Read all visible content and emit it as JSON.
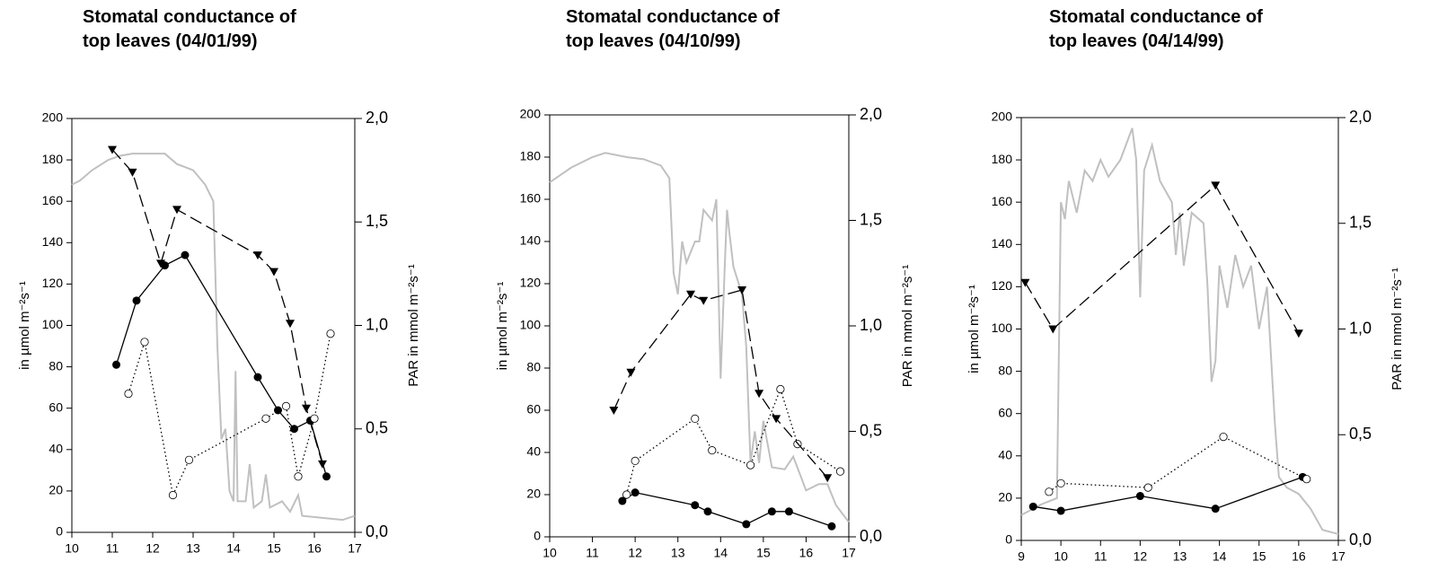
{
  "chart_data": [
    {
      "type": "line",
      "title": [
        "Stomatal conductance of",
        "top leaves (04/01/99)"
      ],
      "ylabel": "in µmol m⁻²s⁻¹",
      "y2label": "PAR in mmol m⁻²s⁻¹",
      "xlim": [
        10,
        17
      ],
      "xticks": [
        10,
        11,
        12,
        13,
        14,
        15,
        16,
        17
      ],
      "ylim": [
        0,
        200
      ],
      "yticks": [
        0,
        20,
        40,
        60,
        80,
        100,
        120,
        140,
        160,
        180,
        200
      ],
      "y2lim": [
        0,
        2
      ],
      "y2ticks": [
        {
          "value": 0,
          "label": "0,0"
        },
        {
          "value": 0.5,
          "label": "0,5"
        },
        {
          "value": 1,
          "label": "1,0"
        },
        {
          "value": 1.5,
          "label": "1,5"
        },
        {
          "value": 2,
          "label": "2,0"
        }
      ],
      "series": [
        {
          "color": "#c0c0c0",
          "marker": "none",
          "dash": "solid",
          "axis": "y2",
          "x": [
            10,
            10.2,
            10.5,
            10.9,
            11.2,
            11.5,
            12,
            12.3,
            12.6,
            13,
            13.3,
            13.5,
            13.6,
            13.7,
            13.8,
            13.9,
            14.0,
            14.05,
            14.1,
            14.3,
            14.4,
            14.5,
            14.7,
            14.8,
            14.9,
            15.2,
            15.4,
            15.6,
            15.7,
            16.2,
            16.7,
            17
          ],
          "values": [
            1.68,
            1.7,
            1.75,
            1.8,
            1.82,
            1.83,
            1.83,
            1.83,
            1.78,
            1.75,
            1.68,
            1.6,
            0.9,
            0.45,
            0.5,
            0.2,
            0.15,
            0.78,
            0.15,
            0.15,
            0.33,
            0.12,
            0.15,
            0.28,
            0.12,
            0.15,
            0.1,
            0.18,
            0.08,
            0.07,
            0.06,
            0.08
          ]
        },
        {
          "color": "#000000",
          "marker": "filled-circle",
          "dash": "solid",
          "x": [
            11.1,
            11.6,
            12.3,
            12.8,
            14.6,
            15.1,
            15.5,
            15.9,
            16.3
          ],
          "values": [
            81,
            112,
            129,
            134,
            75,
            59,
            50,
            54,
            27
          ]
        },
        {
          "color": "#000000",
          "marker": "open-circle",
          "dash": "dotted",
          "x": [
            11.4,
            11.8,
            12.5,
            12.9,
            14.8,
            15.3,
            15.6,
            16.0,
            16.4
          ],
          "values": [
            67,
            92,
            18,
            35,
            55,
            61,
            27,
            55,
            96
          ]
        },
        {
          "color": "#000000",
          "marker": "triangle-down",
          "dash": "dashed",
          "x": [
            11.0,
            11.5,
            12.2,
            12.6,
            14.6,
            15.0,
            15.4,
            15.8,
            16.2
          ],
          "values": [
            185,
            174,
            130,
            156,
            134,
            126,
            101,
            60,
            33
          ]
        }
      ]
    },
    {
      "type": "line",
      "title": [
        "Stomatal conductance of",
        "top leaves (04/10/99)"
      ],
      "ylabel": "in µmol m⁻²s⁻¹",
      "y2label": "PAR in mmol m⁻²s⁻¹",
      "xlim": [
        10,
        17
      ],
      "xticks": [
        10,
        11,
        12,
        13,
        14,
        15,
        16,
        17
      ],
      "ylim": [
        0,
        200
      ],
      "yticks": [
        0,
        20,
        40,
        60,
        80,
        100,
        120,
        140,
        160,
        180,
        200
      ],
      "y2lim": [
        0,
        2
      ],
      "y2ticks": [
        {
          "value": 0,
          "label": "0,0"
        },
        {
          "value": 0.5,
          "label": "0,5"
        },
        {
          "value": 1,
          "label": "1,0"
        },
        {
          "value": 1.5,
          "label": "1,5"
        },
        {
          "value": 2,
          "label": "2,0"
        }
      ],
      "series": [
        {
          "color": "#c0c0c0",
          "marker": "none",
          "dash": "solid",
          "axis": "y2",
          "x": [
            10,
            10.5,
            11,
            11.3,
            11.8,
            12.2,
            12.6,
            12.8,
            12.9,
            13.0,
            13.1,
            13.2,
            13.4,
            13.5,
            13.6,
            13.8,
            13.9,
            14.0,
            14.1,
            14.15,
            14.2,
            14.3,
            14.5,
            14.6,
            14.7,
            14.8,
            14.9,
            15.0,
            15.2,
            15.5,
            15.7,
            16.0,
            16.3,
            16.5,
            16.7,
            17
          ],
          "values": [
            1.68,
            1.75,
            1.8,
            1.82,
            1.8,
            1.79,
            1.76,
            1.7,
            1.25,
            1.15,
            1.4,
            1.3,
            1.4,
            1.4,
            1.55,
            1.5,
            1.6,
            0.75,
            1.3,
            1.55,
            1.45,
            1.28,
            1.15,
            0.9,
            0.35,
            0.5,
            0.35,
            0.55,
            0.33,
            0.32,
            0.38,
            0.22,
            0.25,
            0.25,
            0.15,
            0.07
          ]
        },
        {
          "color": "#000000",
          "marker": "filled-circle",
          "dash": "solid",
          "x": [
            11.7,
            12.0,
            13.4,
            13.7,
            14.6,
            15.2,
            15.6,
            16.6
          ],
          "values": [
            17,
            21,
            15,
            12,
            6,
            12,
            12,
            5
          ]
        },
        {
          "color": "#000000",
          "marker": "open-circle",
          "dash": "dotted",
          "x": [
            11.8,
            12.0,
            13.4,
            13.8,
            14.7,
            15.4,
            15.8,
            16.8
          ],
          "values": [
            20,
            36,
            56,
            41,
            34,
            70,
            44,
            31
          ]
        },
        {
          "color": "#000000",
          "marker": "triangle-down",
          "dash": "dashed",
          "x": [
            11.5,
            11.9,
            13.3,
            13.6,
            14.5,
            14.9,
            15.3,
            16.5
          ],
          "values": [
            60,
            78,
            115,
            112,
            117,
            68,
            56,
            28
          ]
        }
      ]
    },
    {
      "type": "line",
      "title": [
        "Stomatal conductance of",
        "top leaves (04/14/99)"
      ],
      "ylabel": "in µmol m⁻²s⁻¹",
      "y2label": "PAR in mmol m⁻²s⁻¹",
      "xlim": [
        9,
        17
      ],
      "xticks": [
        9,
        10,
        11,
        12,
        13,
        14,
        15,
        16,
        17
      ],
      "ylim": [
        0,
        200
      ],
      "yticks": [
        0,
        20,
        40,
        60,
        80,
        100,
        120,
        140,
        160,
        180,
        200
      ],
      "y2lim": [
        0,
        2
      ],
      "y2ticks": [
        {
          "value": 0,
          "label": "0,0"
        },
        {
          "value": 0.5,
          "label": "0,5"
        },
        {
          "value": 1,
          "label": "1,0"
        },
        {
          "value": 1.5,
          "label": "1,5"
        },
        {
          "value": 2,
          "label": "2,0"
        }
      ],
      "series": [
        {
          "color": "#c0c0c0",
          "marker": "none",
          "dash": "solid",
          "axis": "y2",
          "x": [
            9,
            9.5,
            9.9,
            10.0,
            10.1,
            10.2,
            10.4,
            10.6,
            10.8,
            11.0,
            11.2,
            11.5,
            11.8,
            11.9,
            12.0,
            12.1,
            12.3,
            12.5,
            12.8,
            12.9,
            13.0,
            13.1,
            13.3,
            13.6,
            13.7,
            13.8,
            13.9,
            14.0,
            14.2,
            14.4,
            14.6,
            14.8,
            15.0,
            15.2,
            15.4,
            15.5,
            15.7,
            16.0,
            16.3,
            16.6,
            17
          ],
          "values": [
            0.12,
            0.17,
            0.2,
            1.6,
            1.52,
            1.7,
            1.55,
            1.75,
            1.7,
            1.8,
            1.72,
            1.8,
            1.95,
            1.8,
            1.15,
            1.75,
            1.87,
            1.7,
            1.6,
            1.35,
            1.55,
            1.3,
            1.55,
            1.5,
            1.2,
            0.75,
            0.85,
            1.3,
            1.1,
            1.35,
            1.2,
            1.3,
            1.0,
            1.2,
            0.55,
            0.3,
            0.25,
            0.22,
            0.15,
            0.05,
            0.03
          ]
        },
        {
          "color": "#000000",
          "marker": "filled-circle",
          "dash": "solid",
          "x": [
            9.3,
            10.0,
            12.0,
            13.9,
            16.1
          ],
          "values": [
            16,
            14,
            21,
            15,
            30
          ]
        },
        {
          "color": "#000000",
          "marker": "open-circle",
          "dash": "dotted",
          "x": [
            9.7,
            10.0,
            12.2,
            14.1,
            16.2
          ],
          "values": [
            23,
            27,
            25,
            49,
            29
          ]
        },
        {
          "color": "#000000",
          "marker": "triangle-down",
          "dash": "dashed",
          "x": [
            9.1,
            9.8,
            13.9,
            16.0
          ],
          "values": [
            122,
            100,
            168,
            98
          ]
        }
      ]
    }
  ]
}
